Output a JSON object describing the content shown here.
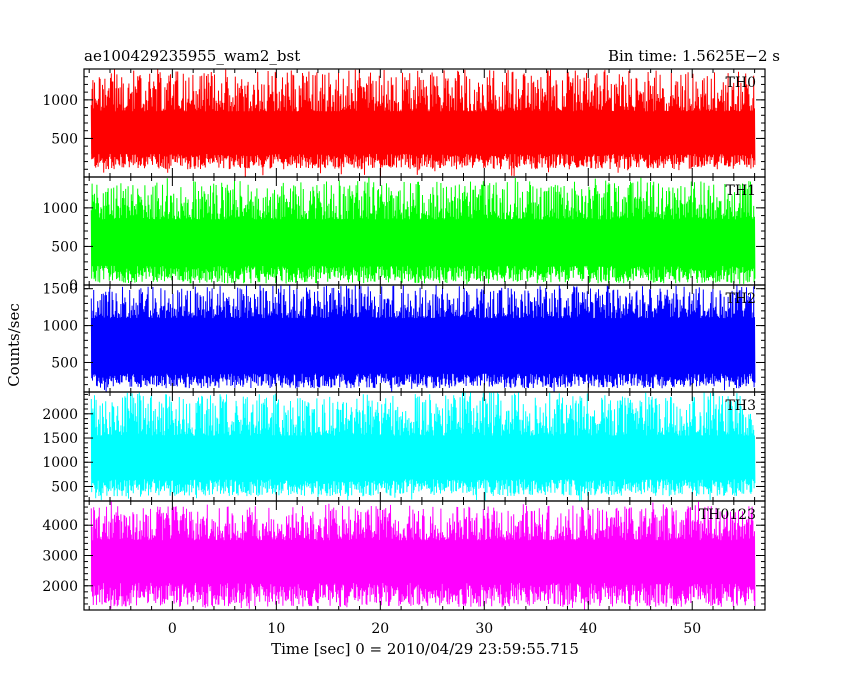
{
  "header": {
    "left_title": "ae100429235955_wam2_bst",
    "right_title": "Bin time: 1.5625E−2 s"
  },
  "axes": {
    "ylabel": "Counts/sec",
    "xlabel": "Time [sec] 0 = 2010/04/29 23:59:55.715"
  },
  "chart_data": {
    "type": "line",
    "title": "ae100429235955_wam2_bst",
    "subtitle": "Bin time: 1.5625E−2 s",
    "xlabel": "Time [sec] 0 = 2010/04/29 23:59:55.715",
    "ylabel": "Counts/sec",
    "xlim": [
      -8.5,
      57
    ],
    "x_data_range": [
      -7.8,
      56
    ],
    "x_ticks": [
      0,
      10,
      20,
      30,
      40,
      50
    ],
    "x_tick_labels": [
      "0",
      "10",
      "20",
      "30",
      "40",
      "50"
    ],
    "grid": false,
    "panels": [
      {
        "name": "TH0",
        "color": "#ff0000",
        "ylim": [
          0,
          1400
        ],
        "y_ticks": [
          500,
          1000
        ],
        "y_tick_labels": [
          "500",
          "1000"
        ],
        "mean": 600,
        "low_band": [
          100,
          300
        ],
        "high_band": [
          850,
          1400
        ]
      },
      {
        "name": "TH1",
        "color": "#00ff00",
        "ylim": [
          0,
          1400
        ],
        "y_ticks": [
          0,
          500,
          1000
        ],
        "y_tick_labels": [
          "0",
          "500",
          "1000"
        ],
        "mean": 580,
        "low_band": [
          20,
          250
        ],
        "high_band": [
          850,
          1350
        ]
      },
      {
        "name": "TH2",
        "color": "#0000ff",
        "ylim": [
          100,
          1550
        ],
        "y_ticks": [
          500,
          1000,
          1500
        ],
        "y_tick_labels": [
          "500",
          "1000",
          "1500"
        ],
        "mean": 750,
        "low_band": [
          150,
          350
        ],
        "high_band": [
          1100,
          1550
        ]
      },
      {
        "name": "TH3",
        "color": "#00ffff",
        "ylim": [
          200,
          2450
        ],
        "y_ticks": [
          500,
          1000,
          1500,
          2000
        ],
        "y_tick_labels": [
          "500",
          "1000",
          "1500",
          "2000"
        ],
        "mean": 1050,
        "low_band": [
          300,
          650
        ],
        "high_band": [
          1550,
          2450
        ]
      },
      {
        "name": "TH0123",
        "color": "#ff00ff",
        "ylim": [
          1200,
          4800
        ],
        "y_ticks": [
          2000,
          3000,
          4000
        ],
        "y_tick_labels": [
          "2000",
          "3000",
          "4000"
        ],
        "mean": 2850,
        "low_band": [
          1300,
          2100
        ],
        "high_band": [
          3500,
          4650
        ]
      }
    ]
  }
}
